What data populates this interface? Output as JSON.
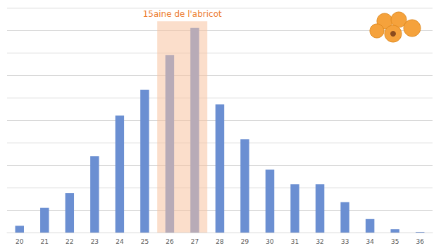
{
  "chart_data": {
    "type": "bar",
    "categories": [
      "20",
      "21",
      "22",
      "23",
      "24",
      "25",
      "26",
      "27",
      "28",
      "29",
      "30",
      "31",
      "32",
      "33",
      "34",
      "35",
      "36"
    ],
    "values": [
      0.3,
      1.1,
      1.75,
      3.4,
      5.2,
      6.35,
      7.9,
      9.1,
      5.7,
      4.15,
      2.8,
      2.15,
      2.15,
      1.35,
      0.6,
      0.15,
      0.03
    ],
    "color": "#6b8fd2",
    "ylim": [
      0,
      10
    ],
    "yticks": [
      0,
      1,
      2,
      3,
      4,
      5,
      6,
      7,
      8,
      9,
      10
    ],
    "grid": true,
    "tick_labels": "x",
    "annotation": {
      "text": "15aine de l'abricot",
      "from": "26",
      "to": "27",
      "color": "#ed7d31"
    }
  }
}
